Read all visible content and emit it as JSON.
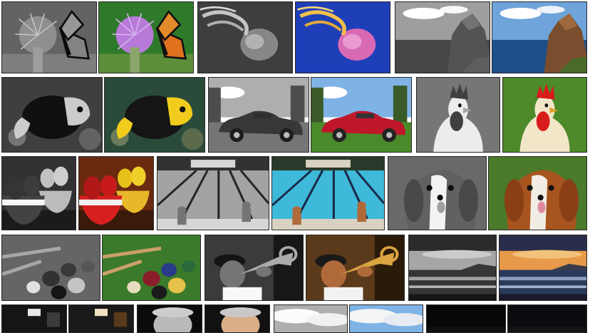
{
  "gallery": {
    "style": "grid of image pairs: grayscale version left, colour version right",
    "pairs": [
      {
        "subject": "monarch-butterfly-on-thistle",
        "colors": {
          "bg": "#2f7a2a",
          "flower": "#b77ad9",
          "wing": "#e0721f"
        }
      },
      {
        "subject": "jellyfish",
        "colors": {
          "bg": "#1f3fb8",
          "body": "#d86ab5",
          "tentacle": "#f2c04a"
        }
      },
      {
        "subject": "coastal-rock-cliff",
        "colors": {
          "sky": "#6ea4d9",
          "sea": "#1d4f8a",
          "rock": "#7a4e2e"
        }
      },
      {
        "subject": "tropical-fish",
        "colors": {
          "bg": "#2a4a3a",
          "body": "#151515",
          "yellow": "#f2cc1d"
        }
      },
      {
        "subject": "red-convertible-car",
        "colors": {
          "sky": "#7fb3e6",
          "grass": "#4a8a2a",
          "car": "#c0162a"
        }
      },
      {
        "subject": "rooster",
        "colors": {
          "bg": "#4d8a2a",
          "comb": "#d81b1b",
          "feathers": "#f2e6c8"
        }
      },
      {
        "subject": "fruit-bowls",
        "colors": {
          "bg": "#6a2a10",
          "bowl": "#d81f1f",
          "fruit": "#e6c21a"
        }
      },
      {
        "subject": "swimming-pool",
        "colors": {
          "water": "#3fb9d9",
          "deck": "#d9d2c2",
          "lane": "#1a2a4a"
        }
      },
      {
        "subject": "cavalier-spaniel",
        "colors": {
          "bg": "#4a7a2a",
          "fur": "#a8541f",
          "white": "#f2ede4"
        }
      },
      {
        "subject": "croquet-balls",
        "colors": {
          "grass": "#3a7a2a",
          "ball_a": "#8a1e2a",
          "ball_b": "#e6c24a"
        }
      },
      {
        "subject": "trumpet-player",
        "colors": {
          "bg": "#5a3a1a",
          "brass": "#d9a441",
          "skin": "#b06a3a"
        }
      },
      {
        "subject": "ocean-sunset",
        "colors": {
          "sky": "#e69a4a",
          "cloud": "#2a2e4a",
          "sea": "#2a3a5a"
        }
      }
    ],
    "bottom_row_partial": 4
  }
}
